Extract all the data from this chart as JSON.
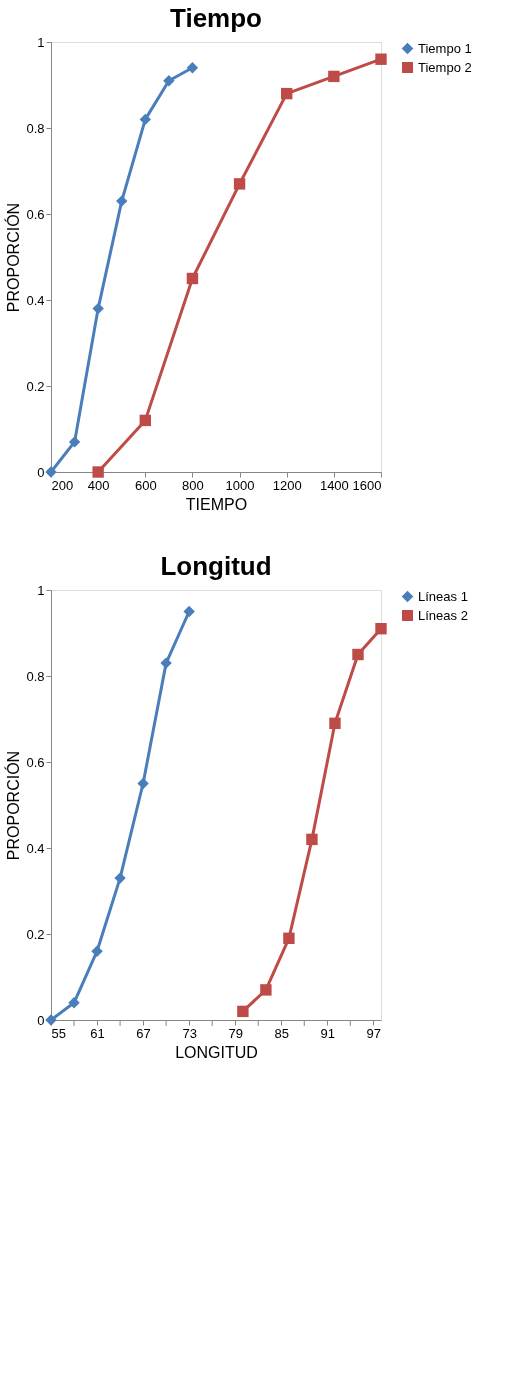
{
  "chart_data": [
    {
      "type": "line",
      "title": "Tiempo",
      "xlabel": "TIEMPO",
      "ylabel": "PROPORCIÓN",
      "xlim": [
        200,
        1600
      ],
      "xticks": [
        200,
        400,
        600,
        800,
        1000,
        1200,
        1400,
        1600
      ],
      "ylim": [
        0,
        1
      ],
      "yticks": [
        0,
        0.2,
        0.4,
        0.6,
        0.8,
        1
      ],
      "grid": false,
      "legend": "right",
      "series": [
        {
          "name": "Tiempo 1",
          "color": "#4a7ebb",
          "marker": "diamond",
          "x": [
            200,
            300,
            400,
            500,
            600,
            700,
            800
          ],
          "values": [
            0,
            0.07,
            0.38,
            0.63,
            0.82,
            0.91,
            0.94
          ]
        },
        {
          "name": "Tiempo 2",
          "color": "#be4b48",
          "marker": "square",
          "x": [
            400,
            600,
            800,
            1000,
            1200,
            1400,
            1600
          ],
          "values": [
            0,
            0.12,
            0.45,
            0.67,
            0.88,
            0.92,
            0.96
          ]
        }
      ]
    },
    {
      "type": "line",
      "title": "Longitud",
      "xlabel": "LONGITUD",
      "ylabel": "PROPORCIÓN",
      "xlim": [
        55,
        98
      ],
      "xticks": [
        55,
        {
          "value": 58,
          "label": null
        },
        61,
        {
          "value": 64,
          "label": null
        },
        67,
        {
          "value": 70,
          "label": null
        },
        73,
        {
          "value": 76,
          "label": null
        },
        79,
        {
          "value": 82,
          "label": null
        },
        85,
        {
          "value": 88,
          "label": null
        },
        91,
        {
          "value": 94,
          "label": null
        },
        97
      ],
      "ylim": [
        0,
        1
      ],
      "yticks": [
        0,
        0.2,
        0.4,
        0.6,
        0.8,
        1
      ],
      "grid": false,
      "legend": "right",
      "series": [
        {
          "name": "Líneas 1",
          "color": "#4a7ebb",
          "marker": "diamond",
          "x": [
            55,
            58,
            61,
            64,
            67,
            70,
            73
          ],
          "values": [
            0,
            0.04,
            0.16,
            0.33,
            0.55,
            0.83,
            0.95
          ]
        },
        {
          "name": "Líneas 2",
          "color": "#be4b48",
          "marker": "square",
          "x": [
            80,
            83,
            86,
            89,
            92,
            95,
            98
          ],
          "values": [
            0.02,
            0.07,
            0.19,
            0.42,
            0.69,
            0.85,
            0.91
          ]
        }
      ]
    }
  ]
}
